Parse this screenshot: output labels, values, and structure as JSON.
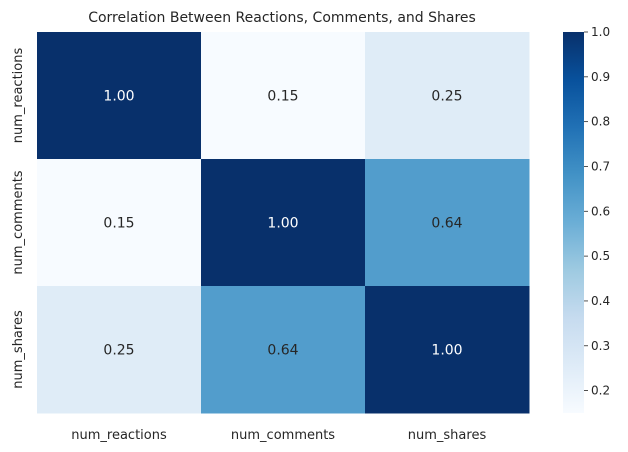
{
  "chart_data": {
    "type": "heatmap",
    "title": "Correlation Between Reactions, Comments, and Shares",
    "x_labels": [
      "num_reactions",
      "num_comments",
      "num_shares"
    ],
    "y_labels": [
      "num_reactions",
      "num_comments",
      "num_shares"
    ],
    "values": [
      [
        1.0,
        0.15,
        0.25
      ],
      [
        0.15,
        1.0,
        0.64
      ],
      [
        0.25,
        0.64,
        1.0
      ]
    ],
    "annotations": [
      [
        "1.00",
        "0.15",
        "0.25"
      ],
      [
        "0.15",
        "1.00",
        "0.64"
      ],
      [
        "0.25",
        "0.64",
        "1.00"
      ]
    ],
    "colormap": "Blues",
    "colorbar": {
      "range": [
        0.15,
        1.0
      ],
      "ticks": [
        "0.2",
        "0.3",
        "0.4",
        "0.5",
        "0.6",
        "0.7",
        "0.8",
        "0.9",
        "1.0"
      ]
    }
  }
}
